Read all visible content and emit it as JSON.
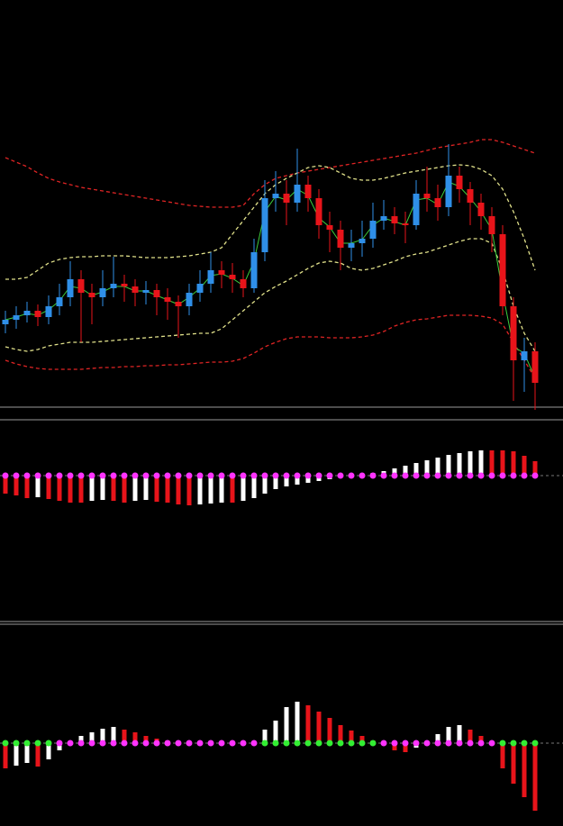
{
  "chart_data": [
    {
      "type": "candlestick",
      "ylim": [
        0,
        450
      ],
      "up_color": "#2f8fe8",
      "down_color": "#e8141a",
      "open": [
        90,
        95,
        100,
        105,
        98,
        110,
        120,
        140,
        125,
        120,
        130,
        135,
        132,
        125,
        128,
        120,
        115,
        110,
        125,
        135,
        150,
        145,
        140,
        130,
        170,
        230,
        235,
        225,
        245,
        230,
        200,
        195,
        175,
        180,
        185,
        205,
        210,
        202,
        200,
        235,
        230,
        220,
        255,
        240,
        225,
        210,
        190,
        110,
        50,
        60
      ],
      "high": [
        105,
        110,
        115,
        112,
        122,
        135,
        160,
        150,
        135,
        150,
        165,
        145,
        140,
        138,
        135,
        130,
        122,
        135,
        150,
        170,
        160,
        158,
        150,
        185,
        250,
        260,
        250,
        285,
        255,
        240,
        215,
        205,
        195,
        205,
        225,
        228,
        220,
        215,
        250,
        265,
        245,
        290,
        265,
        248,
        235,
        220,
        200,
        120,
        75,
        70
      ],
      "low": [
        80,
        85,
        92,
        88,
        90,
        100,
        110,
        70,
        90,
        110,
        120,
        115,
        110,
        112,
        100,
        95,
        75,
        100,
        115,
        125,
        130,
        125,
        120,
        125,
        160,
        215,
        200,
        215,
        215,
        185,
        170,
        150,
        160,
        165,
        175,
        195,
        190,
        180,
        195,
        215,
        205,
        210,
        225,
        200,
        195,
        170,
        100,
        5,
        15,
        -5
      ],
      "close": [
        95,
        100,
        105,
        98,
        110,
        120,
        140,
        125,
        120,
        130,
        135,
        132,
        125,
        128,
        120,
        115,
        110,
        125,
        135,
        150,
        145,
        140,
        130,
        170,
        230,
        235,
        225,
        245,
        230,
        200,
        195,
        175,
        180,
        185,
        205,
        210,
        202,
        200,
        235,
        230,
        220,
        255,
        240,
        225,
        210,
        190,
        110,
        50,
        60,
        25
      ],
      "series": [
        {
          "color": "#e02424",
          "dash": true,
          "values": [
            275,
            270,
            265,
            258,
            252,
            248,
            245,
            242,
            240,
            238,
            236,
            234,
            232,
            230,
            228,
            226,
            224,
            222,
            221,
            220,
            220,
            220,
            222,
            235,
            245,
            252,
            255,
            258,
            260,
            262,
            264,
            266,
            268,
            270,
            272,
            274,
            276,
            278,
            280,
            283,
            286,
            288,
            290,
            292,
            295,
            295,
            292,
            288,
            284,
            280
          ]
        },
        {
          "color": "#e02424",
          "dash": true,
          "values": [
            50,
            46,
            43,
            41,
            40,
            40,
            40,
            40,
            41,
            42,
            42,
            43,
            43,
            44,
            44,
            45,
            45,
            46,
            47,
            48,
            48,
            49,
            52,
            58,
            65,
            70,
            74,
            76,
            76,
            76,
            75,
            75,
            75,
            76,
            78,
            82,
            88,
            92,
            95,
            96,
            98,
            100,
            100,
            100,
            99,
            97,
            90,
            70,
            50,
            30
          ]
        },
        {
          "color": "#e0e08a",
          "dash": true,
          "values": [
            140,
            140,
            142,
            150,
            158,
            162,
            164,
            165,
            165,
            166,
            166,
            166,
            165,
            164,
            164,
            164,
            165,
            166,
            168,
            170,
            175,
            190,
            205,
            220,
            235,
            245,
            252,
            258,
            264,
            266,
            264,
            258,
            252,
            250,
            250,
            252,
            255,
            258,
            260,
            262,
            264,
            266,
            267,
            266,
            262,
            255,
            240,
            215,
            185,
            150
          ]
        },
        {
          "color": "#e0e08a",
          "dash": true,
          "values": [
            65,
            62,
            60,
            62,
            66,
            68,
            70,
            70,
            70,
            71,
            72,
            73,
            74,
            75,
            76,
            77,
            78,
            79,
            80,
            80,
            85,
            95,
            105,
            115,
            125,
            132,
            138,
            145,
            152,
            158,
            160,
            158,
            152,
            150,
            152,
            156,
            160,
            165,
            168,
            170,
            174,
            178,
            182,
            185,
            185,
            180,
            150,
            110,
            80,
            60
          ]
        },
        {
          "color": "#3ccc3c",
          "dash": false,
          "values": [
            95,
            98,
            102,
            100,
            106,
            116,
            132,
            130,
            122,
            126,
            132,
            132,
            127,
            127,
            122,
            117,
            112,
            120,
            130,
            144,
            146,
            141,
            133,
            160,
            215,
            232,
            228,
            240,
            233,
            208,
            198,
            180,
            180,
            184,
            200,
            208,
            204,
            200,
            228,
            230,
            223,
            248,
            243,
            230,
            215,
            195,
            125,
            65,
            58,
            30
          ]
        }
      ]
    },
    {
      "type": "histogram-dots",
      "ylim": [
        -162,
        60
      ],
      "up_color": "#ffffff",
      "down_color": "#e8141a",
      "values": [
        -20,
        -22,
        -25,
        -24,
        -26,
        -28,
        -30,
        -30,
        -28,
        -27,
        -28,
        -30,
        -28,
        -27,
        -29,
        -30,
        -32,
        -33,
        -32,
        -31,
        -30,
        -30,
        -28,
        -25,
        -20,
        -15,
        -12,
        -10,
        -8,
        -6,
        -4,
        -2,
        0,
        1,
        3,
        5,
        8,
        11,
        14,
        17,
        20,
        23,
        25,
        27,
        28,
        28,
        28,
        27,
        22,
        16
      ],
      "dot_colors": [
        "#ff33ff",
        "#ff33ff",
        "#ff33ff",
        "#ff33ff",
        "#ff33ff",
        "#ff33ff",
        "#ff33ff",
        "#ff33ff",
        "#ff33ff",
        "#ff33ff",
        "#ff33ff",
        "#ff33ff",
        "#ff33ff",
        "#ff33ff",
        "#ff33ff",
        "#ff33ff",
        "#ff33ff",
        "#ff33ff",
        "#ff33ff",
        "#ff33ff",
        "#ff33ff",
        "#ff33ff",
        "#ff33ff",
        "#ff33ff",
        "#ff33ff",
        "#ff33ff",
        "#ff33ff",
        "#ff33ff",
        "#ff33ff",
        "#ff33ff",
        "#ff33ff",
        "#ff33ff",
        "#ff33ff",
        "#ff33ff",
        "#ff33ff",
        "#ff33ff",
        "#ff33ff",
        "#ff33ff",
        "#ff33ff",
        "#ff33ff",
        "#ff33ff",
        "#ff33ff",
        "#ff33ff",
        "#ff33ff",
        "#ff33ff",
        "#ff33ff",
        "#ff33ff",
        "#ff33ff",
        "#ff33ff",
        "#ff33ff"
      ]
    },
    {
      "type": "histogram-dots",
      "ylim": [
        -92,
        132
      ],
      "up_color": "#ffffff",
      "down_color": "#e8141a",
      "values": [
        -28,
        -25,
        -22,
        -26,
        -18,
        -8,
        2,
        8,
        12,
        16,
        18,
        15,
        12,
        8,
        5,
        3,
        1,
        0,
        0,
        1,
        0,
        0,
        0,
        2,
        15,
        25,
        40,
        46,
        42,
        35,
        28,
        20,
        14,
        8,
        3,
        -2,
        -8,
        -10,
        -5,
        2,
        10,
        18,
        20,
        15,
        8,
        2,
        -28,
        -45,
        -60,
        -75
      ],
      "dot_colors": [
        "#33ee33",
        "#33ee33",
        "#33ee33",
        "#33ee33",
        "#33ee33",
        "#ff33ff",
        "#ff33ff",
        "#ff33ff",
        "#ff33ff",
        "#ff33ff",
        "#ff33ff",
        "#ff33ff",
        "#ff33ff",
        "#ff33ff",
        "#ff33ff",
        "#ff33ff",
        "#ff33ff",
        "#ff33ff",
        "#ff33ff",
        "#ff33ff",
        "#ff33ff",
        "#ff33ff",
        "#ff33ff",
        "#ff33ff",
        "#33ee33",
        "#33ee33",
        "#33ee33",
        "#33ee33",
        "#33ee33",
        "#33ee33",
        "#33ee33",
        "#33ee33",
        "#33ee33",
        "#33ee33",
        "#33ee33",
        "#ff33ff",
        "#ff33ff",
        "#ff33ff",
        "#ff33ff",
        "#ff33ff",
        "#ff33ff",
        "#ff33ff",
        "#ff33ff",
        "#ff33ff",
        "#ff33ff",
        "#ff33ff",
        "#33ee33",
        "#33ee33",
        "#33ee33",
        "#33ee33"
      ]
    }
  ]
}
